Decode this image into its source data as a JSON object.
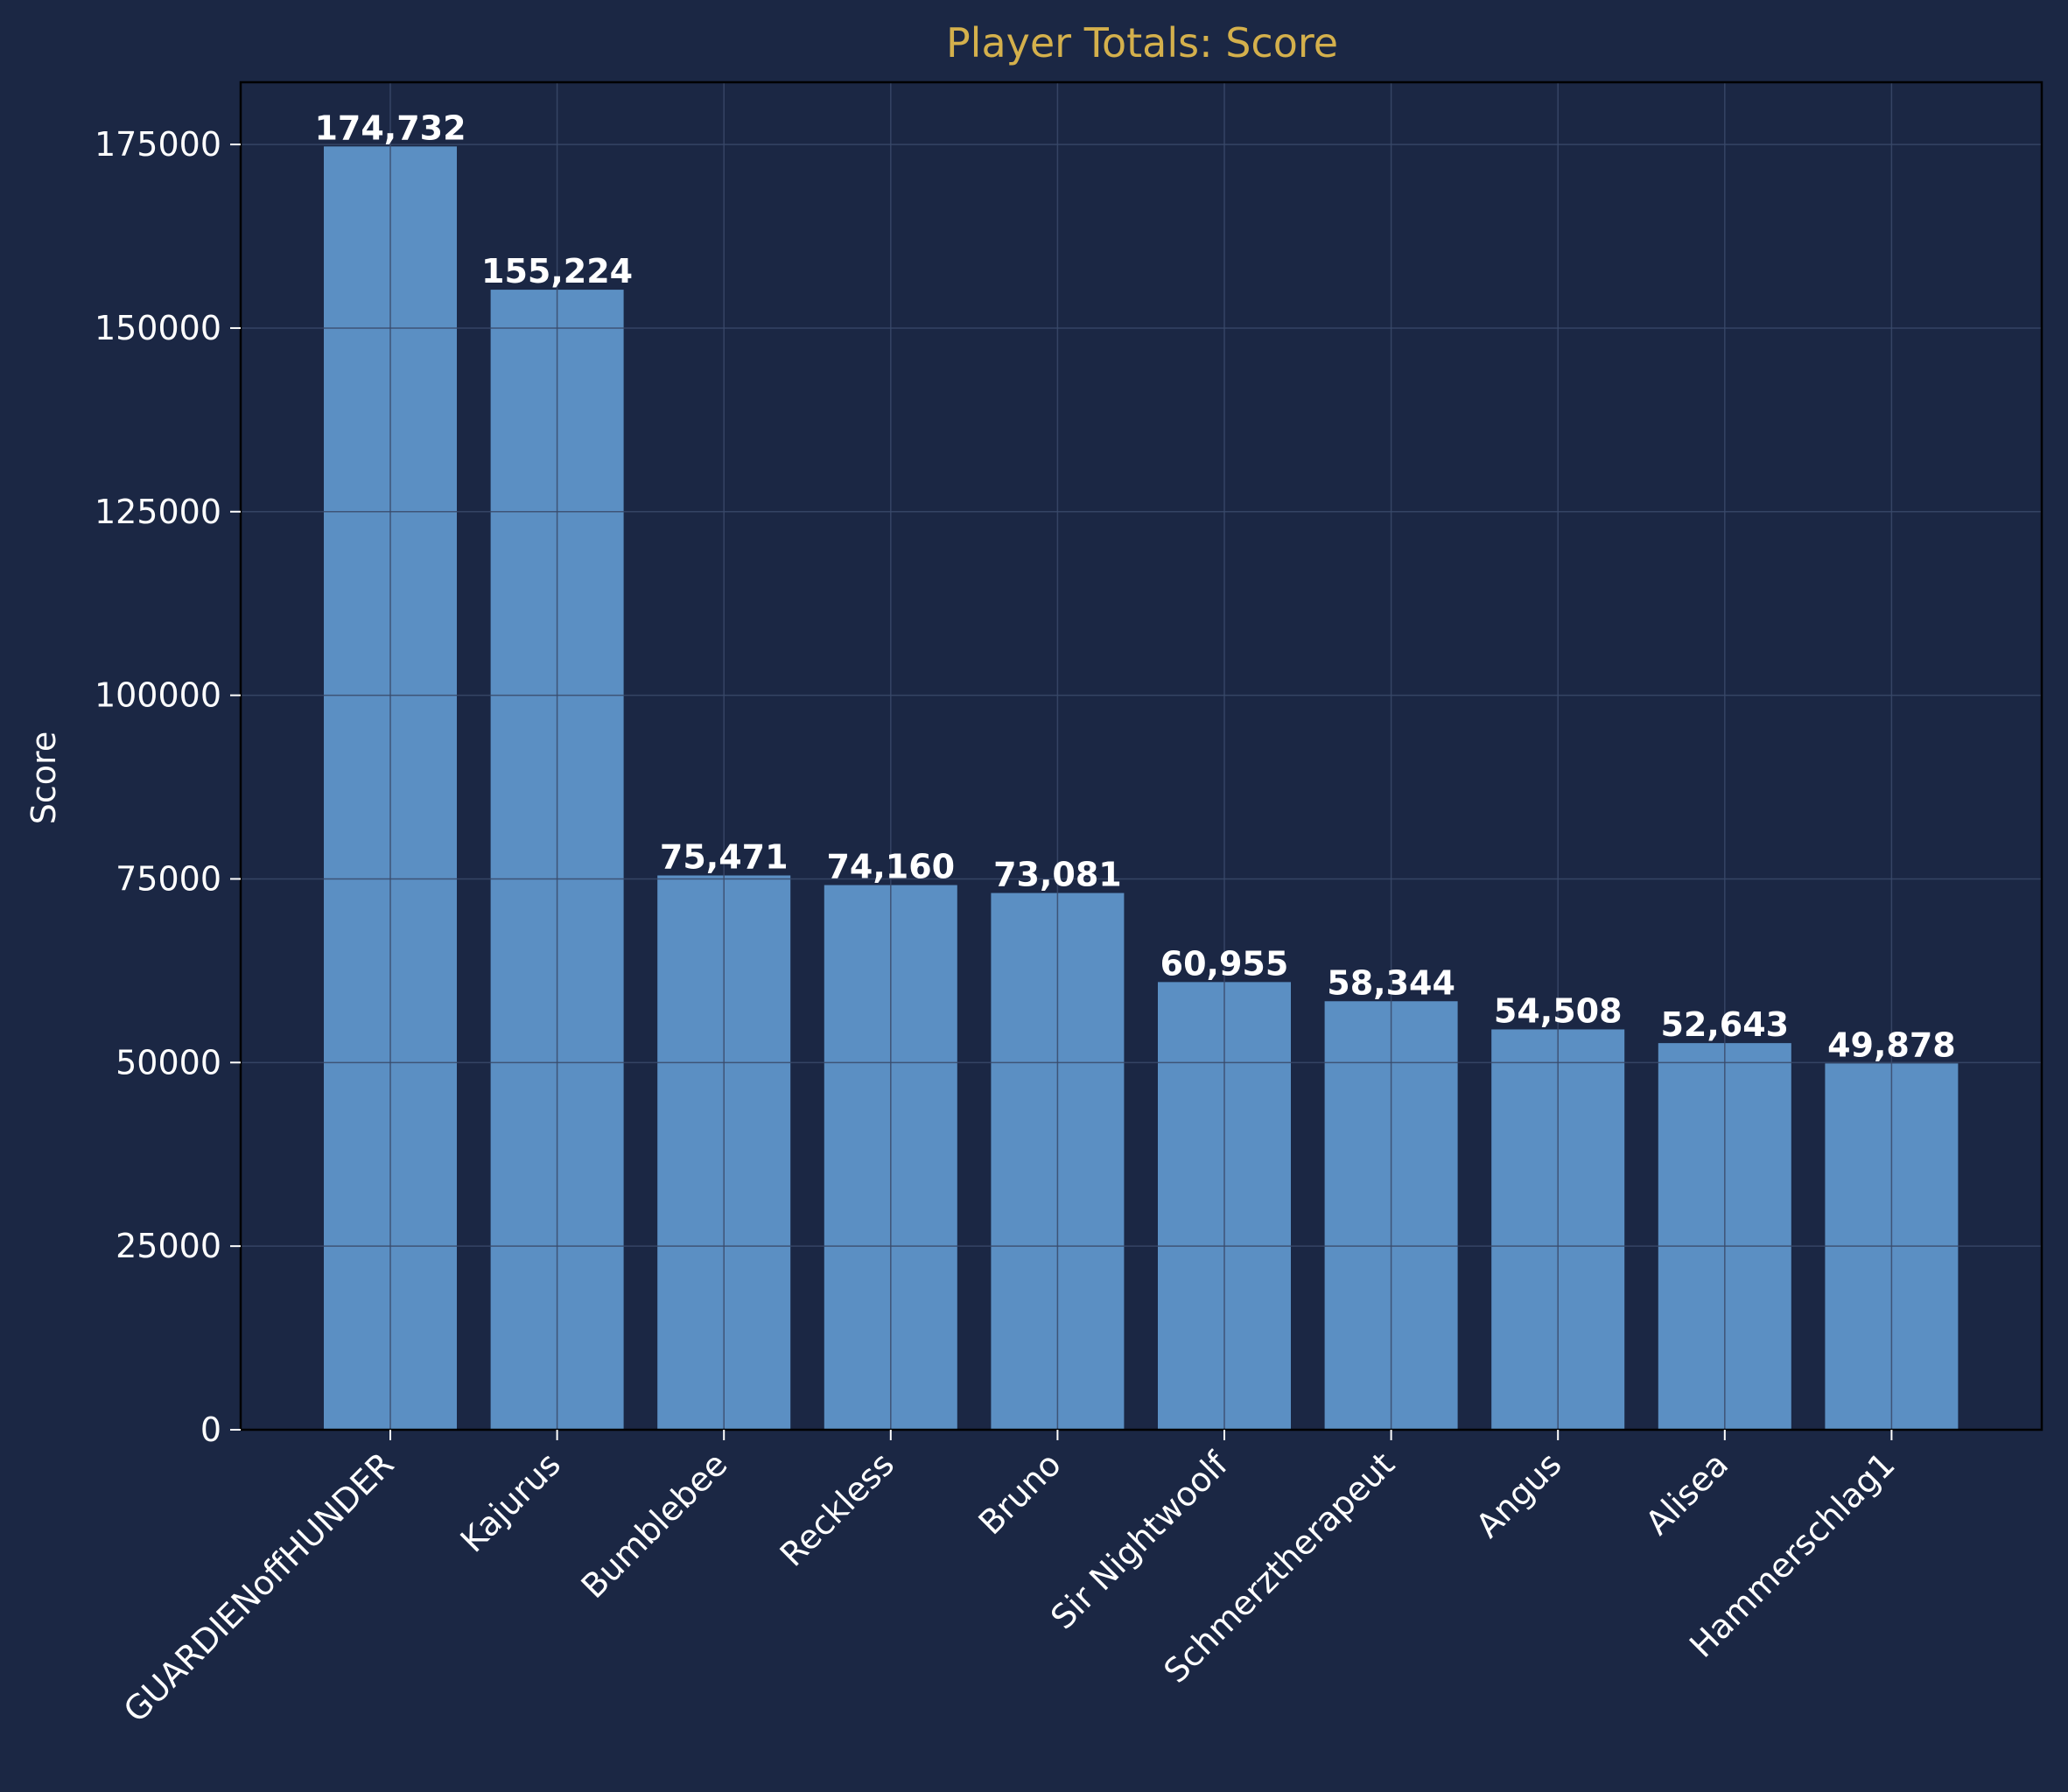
{
  "colors": {
    "background": "#1b2744",
    "bar": "#5b8fc3",
    "title": "#d4b04c",
    "text": "#ffffff",
    "grid": "#3a4a6a"
  },
  "chart_data": {
    "type": "bar",
    "title": "Player Totals: Score",
    "xlabel": "",
    "ylabel": "Score",
    "ylim": [
      0,
      183470
    ],
    "yticks": [
      0,
      25000,
      50000,
      75000,
      100000,
      125000,
      150000,
      175000
    ],
    "grid": true,
    "categories": [
      "GUARDIENoffHUNDER",
      "Kajurus",
      "Bumblebee",
      "Reckless",
      "Bruno",
      "Sir Nightwoolf",
      "Schmerztherapeut",
      "Angus",
      "Alisea",
      "Hammerschlag1"
    ],
    "values": [
      174732,
      155224,
      75471,
      74160,
      73081,
      60955,
      58344,
      54508,
      52643,
      49878
    ],
    "value_labels": [
      "174,732",
      "155,224",
      "75,471",
      "74,160",
      "73,081",
      "60,955",
      "58,344",
      "54,508",
      "52,643",
      "49,878"
    ]
  }
}
